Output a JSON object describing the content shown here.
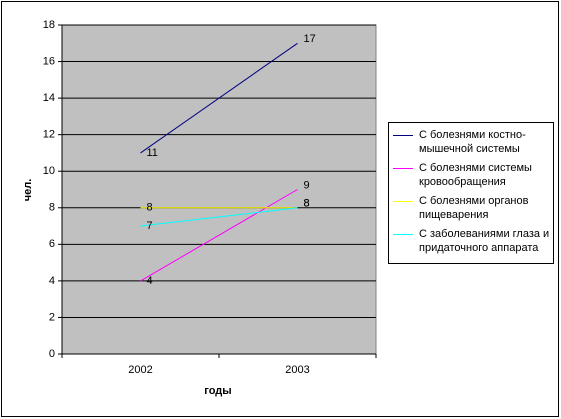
{
  "chart_data": {
    "type": "line",
    "x_label": "годы",
    "y_label": "чел.",
    "categories": [
      "2002",
      "2003"
    ],
    "series": [
      {
        "name": "С болезнями костно-мышечной системы",
        "color": "#000080",
        "values": [
          11,
          17
        ]
      },
      {
        "name": "С болезнями системы кровообращения",
        "color": "#ff00ff",
        "values": [
          4,
          9
        ]
      },
      {
        "name": "С болезнями органов пищеварения",
        "color": "#ffff00",
        "values": [
          8,
          8
        ]
      },
      {
        "name": "С заболеваниями глаза и придаточного аппарата",
        "color": "#00ffff",
        "values": [
          7,
          8
        ]
      }
    ],
    "ylim": [
      0,
      18
    ],
    "yticks": [
      0,
      2,
      4,
      6,
      8,
      10,
      12,
      14,
      16,
      18
    ],
    "grid": true,
    "legend": "right",
    "plot_background": "#c0c0c0"
  }
}
